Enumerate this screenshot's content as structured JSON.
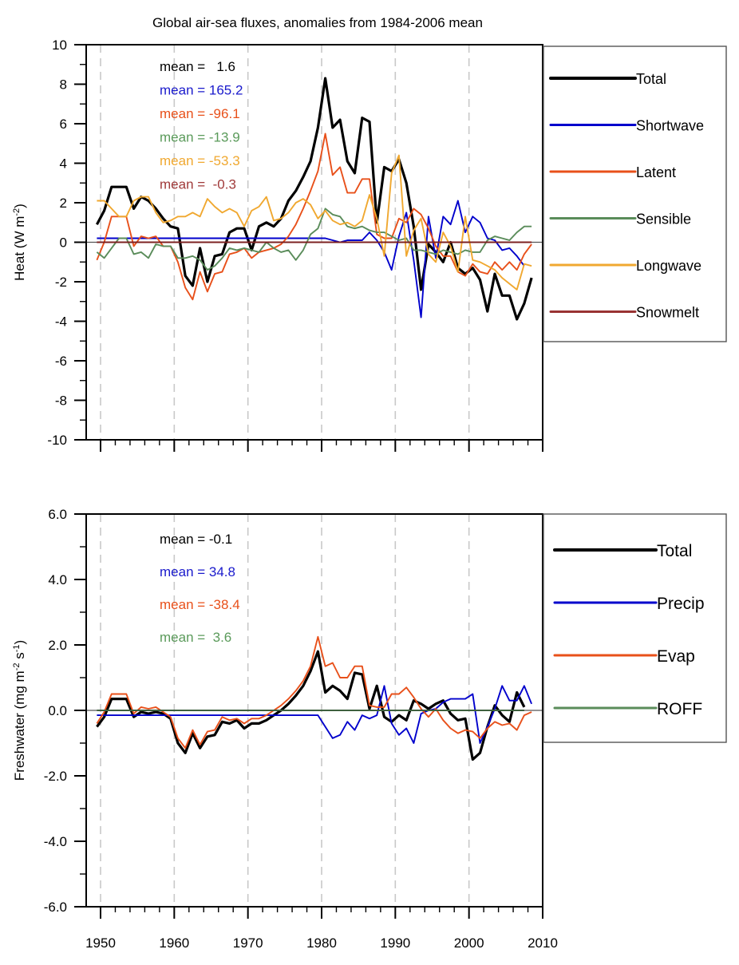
{
  "chart_data": [
    {
      "type": "line",
      "title": "Global air-sea fluxes, anomalies from 1984-2006 mean",
      "xlabel": "",
      "ylabel": "Heat (W m^-2)",
      "ylabel_main": "Heat (W m",
      "ylabel_sup": "-2",
      "ylabel_end": ")",
      "xlim": [
        1950,
        2010
      ],
      "ylim": [
        -10,
        10
      ],
      "xticks": [
        1950,
        1960,
        1970,
        1980,
        1990,
        2000,
        2010
      ],
      "xtick_labels_shown": false,
      "yticks": [
        10,
        8,
        6,
        4,
        2,
        0,
        -2,
        -4,
        -6,
        -8,
        -10
      ],
      "ytick_labels": [
        "10",
        "8",
        "6",
        "4",
        "2",
        "0",
        "-2",
        "-4",
        "-6",
        "-8",
        "-10"
      ],
      "grid": "vertical dashed at decades",
      "legend_position": "right",
      "x_start": 1949.5,
      "series": [
        {
          "name": "Total",
          "color": "#000000",
          "mean_label": "mean =   1.6",
          "values": [
            0.9,
            1.6,
            2.8,
            2.8,
            2.8,
            1.7,
            2.3,
            2.1,
            1.7,
            1.2,
            0.8,
            0.7,
            -1.7,
            -2.2,
            -0.3,
            -2.0,
            -0.7,
            -0.6,
            0.5,
            0.7,
            0.7,
            -0.4,
            0.8,
            1.0,
            0.8,
            1.2,
            2.1,
            2.6,
            3.3,
            4.1,
            5.8,
            8.3,
            5.8,
            6.2,
            4.1,
            3.5,
            6.3,
            6.1,
            1.0,
            3.8,
            3.6,
            4.2,
            3.0,
            0.8,
            -2.4,
            -0.1,
            -0.5,
            -1.0,
            0.0,
            -1.3,
            -1.6,
            -1.3,
            -1.9,
            -3.5,
            -1.6,
            -2.7,
            -2.7,
            -3.9,
            -3.1,
            -1.8
          ]
        },
        {
          "name": "Shortwave",
          "color": "#0000cc",
          "mean_label": "mean = 165.2",
          "values": [
            0.2,
            0.2,
            0.2,
            0.2,
            0.2,
            0.2,
            0.2,
            0.2,
            0.2,
            0.2,
            0.2,
            0.2,
            0.2,
            0.2,
            0.2,
            0.2,
            0.2,
            0.2,
            0.2,
            0.2,
            0.2,
            0.2,
            0.2,
            0.2,
            0.2,
            0.2,
            0.2,
            0.2,
            0.2,
            0.2,
            0.2,
            0.2,
            0.1,
            0.0,
            0.1,
            0.1,
            0.1,
            0.5,
            0.1,
            -0.5,
            -1.4,
            0.3,
            1.5,
            -0.9,
            -3.8,
            1.3,
            -0.8,
            1.3,
            0.9,
            2.1,
            0.5,
            1.3,
            1.0,
            0.2,
            0.1,
            -0.4,
            -0.3,
            -0.7,
            -1.2
          ]
        },
        {
          "name": "Latent",
          "color": "#e8501a",
          "mean_label": "mean = -96.1",
          "values": [
            -0.9,
            0.0,
            1.3,
            1.3,
            1.3,
            -0.2,
            0.3,
            0.2,
            0.3,
            -0.2,
            -0.2,
            -1.0,
            -2.3,
            -2.9,
            -1.5,
            -2.5,
            -1.6,
            -1.5,
            -0.6,
            -0.5,
            -0.3,
            -0.8,
            -0.5,
            -0.4,
            -0.3,
            -0.1,
            0.3,
            0.9,
            1.7,
            2.6,
            3.6,
            5.5,
            3.4,
            3.8,
            2.5,
            2.5,
            3.2,
            3.2,
            0.4,
            0.2,
            0.2,
            1.2,
            1.0,
            1.7,
            1.4,
            0.7,
            -0.2,
            -0.7,
            -0.7,
            -1.5,
            -1.7,
            -1.1,
            -1.5,
            -1.6,
            -1.0,
            -1.4,
            -1.0,
            -1.4,
            -0.6,
            -0.1
          ]
        },
        {
          "name": "Sensible",
          "color": "#5a8c5a",
          "mean_label": "mean = -13.9",
          "values": [
            -0.5,
            -0.8,
            -0.3,
            0.2,
            0.2,
            -0.6,
            -0.5,
            -0.8,
            -0.1,
            -0.2,
            -0.2,
            -0.8,
            -0.8,
            -0.7,
            -0.9,
            -1.4,
            -1.2,
            -0.8,
            -0.3,
            -0.4,
            -0.3,
            -0.4,
            -0.5,
            0.0,
            -0.3,
            -0.5,
            -0.4,
            -0.9,
            -0.4,
            0.4,
            0.7,
            1.7,
            1.4,
            1.3,
            0.8,
            0.7,
            0.8,
            0.6,
            0.5,
            0.5,
            0.3,
            0.1,
            0.2,
            -0.4,
            -0.4,
            -0.5,
            -0.6,
            -0.4,
            -0.5,
            -0.6,
            -0.4,
            -0.5,
            -0.5,
            0.1,
            0.3,
            0.2,
            0.1,
            0.5,
            0.8,
            0.8
          ]
        },
        {
          "name": "Longwave",
          "color": "#f0a830",
          "mean_label": "mean = -53.3",
          "values": [
            2.1,
            2.1,
            1.7,
            1.3,
            1.3,
            2.1,
            2.3,
            2.3,
            1.5,
            1.0,
            1.1,
            1.3,
            1.3,
            1.5,
            1.3,
            2.2,
            1.8,
            1.5,
            1.7,
            1.5,
            0.8,
            1.6,
            1.8,
            2.3,
            1.1,
            1.2,
            1.5,
            2.0,
            2.2,
            1.9,
            1.2,
            1.6,
            1.1,
            0.9,
            1.0,
            0.8,
            1.1,
            2.4,
            1.2,
            -0.7,
            3.5,
            4.4,
            -0.7,
            0.6,
            1.2,
            -0.6,
            -1.0,
            0.5,
            -0.2,
            -1.5,
            1.3,
            -0.9,
            -1.0,
            -1.2,
            -1.4,
            -1.8,
            -2.1,
            -2.4,
            -1.1,
            -1.2
          ]
        },
        {
          "name": "Snowmelt",
          "color": "#993333",
          "mean_label": "mean =  -0.3",
          "values": [
            0.0,
            0.0,
            0.0,
            0.0,
            0.0,
            0.0,
            0.0,
            0.0,
            0.0,
            0.0,
            0.0,
            0.0,
            0.0,
            0.0,
            0.0,
            0.0,
            0.0,
            0.0,
            0.0,
            0.0,
            0.0,
            0.0,
            0.0,
            0.0,
            0.0,
            0.0,
            0.0,
            0.0,
            0.0,
            0.0,
            0.0,
            0.0,
            0.0,
            0.0,
            0.0,
            0.0,
            0.0,
            0.0,
            0.0,
            0.0,
            0.0,
            0.0,
            0.0,
            0.0,
            0.0,
            0.0,
            0.0,
            0.0,
            0.0,
            0.0,
            0.0,
            0.0,
            0.0,
            0.0,
            0.0,
            0.0,
            0.0,
            0.0,
            0.0,
            0.0
          ]
        }
      ]
    },
    {
      "type": "line",
      "title": "",
      "xlabel": "",
      "ylabel": "Freshwater (mg m^-2 s^-1)",
      "ylabel_main": "Freshwater (mg m",
      "ylabel_sup1": "-2",
      "ylabel_mid": " s",
      "ylabel_sup2": "-1",
      "ylabel_end": ")",
      "xlim": [
        1950,
        2010
      ],
      "ylim": [
        -6.0,
        6.0
      ],
      "xticks": [
        1950,
        1960,
        1970,
        1980,
        1990,
        2000,
        2010
      ],
      "xtick_labels": [
        "1950",
        "1960",
        "1970",
        "1980",
        "1990",
        "2000",
        "2010"
      ],
      "yticks": [
        6.0,
        4.0,
        2.0,
        0.0,
        -2.0,
        -4.0,
        -6.0
      ],
      "ytick_labels": [
        "6.0",
        "4.0",
        "2.0",
        "0.0",
        "-2.0",
        "-4.0",
        "-6.0"
      ],
      "grid": "vertical dashed at decades",
      "legend_position": "right",
      "x_start": 1949.5,
      "series": [
        {
          "name": "Total",
          "color": "#000000",
          "mean_label": "mean = -0.1",
          "values": [
            -0.5,
            -0.2,
            0.35,
            0.35,
            0.35,
            -0.2,
            -0.05,
            -0.1,
            -0.05,
            -0.1,
            -0.25,
            -1.0,
            -1.3,
            -0.7,
            -1.15,
            -0.8,
            -0.75,
            -0.35,
            -0.4,
            -0.3,
            -0.55,
            -0.4,
            -0.4,
            -0.3,
            -0.15,
            0.0,
            0.2,
            0.45,
            0.75,
            1.2,
            1.8,
            0.55,
            0.75,
            0.6,
            0.35,
            1.15,
            1.1,
            0.05,
            0.75,
            -0.2,
            -0.35,
            -0.15,
            -0.3,
            0.3,
            0.2,
            0.05,
            0.2,
            0.3,
            -0.1,
            -0.3,
            -0.25,
            -1.5,
            -1.3,
            -0.5,
            0.15,
            -0.15,
            -0.35,
            0.55,
            0.1
          ]
        },
        {
          "name": "Precip",
          "color": "#0000cc",
          "mean_label": "mean = 34.8",
          "values": [
            -0.15,
            -0.15,
            -0.15,
            -0.15,
            -0.15,
            -0.15,
            -0.15,
            -0.15,
            -0.15,
            -0.15,
            -0.15,
            -0.15,
            -0.15,
            -0.15,
            -0.15,
            -0.15,
            -0.15,
            -0.15,
            -0.15,
            -0.15,
            -0.15,
            -0.15,
            -0.15,
            -0.15,
            -0.15,
            -0.15,
            -0.15,
            -0.15,
            -0.15,
            -0.15,
            -0.15,
            -0.5,
            -0.85,
            -0.75,
            -0.35,
            -0.6,
            -0.15,
            -0.25,
            -0.15,
            0.75,
            -0.4,
            -0.75,
            -0.55,
            -1.0,
            -0.1,
            0.0,
            0.05,
            0.25,
            0.35,
            0.35,
            0.35,
            0.5,
            -1.0,
            -0.5,
            0.05,
            0.75,
            0.3,
            0.3,
            0.75,
            0.2
          ]
        },
        {
          "name": "Evap",
          "color": "#e8501a",
          "mean_label": "mean = -38.4",
          "values": [
            -0.4,
            -0.05,
            0.5,
            0.5,
            0.5,
            -0.1,
            0.1,
            0.05,
            0.1,
            -0.05,
            -0.2,
            -0.85,
            -1.15,
            -0.6,
            -1.05,
            -0.65,
            -0.6,
            -0.2,
            -0.3,
            -0.25,
            -0.4,
            -0.25,
            -0.25,
            -0.15,
            0.0,
            0.15,
            0.35,
            0.6,
            0.9,
            1.35,
            2.25,
            1.35,
            1.45,
            1.0,
            1.0,
            1.35,
            1.35,
            0.15,
            0.1,
            0.1,
            0.5,
            0.5,
            0.7,
            0.4,
            0.05,
            -0.2,
            0.05,
            -0.3,
            -0.55,
            -0.7,
            -0.6,
            -0.65,
            -0.85,
            -0.55,
            -0.35,
            -0.45,
            -0.4,
            -0.6,
            -0.15,
            -0.05
          ]
        },
        {
          "name": "ROFF",
          "color": "#5a8c5a",
          "mean_label": "mean =  3.6",
          "values": [
            0.0,
            0.0,
            0.0,
            0.0,
            0.0,
            0.0,
            0.0,
            0.0,
            0.0,
            0.0,
            0.0,
            0.0,
            0.0,
            0.0,
            0.0,
            0.0,
            0.0,
            0.0,
            0.0,
            0.0,
            0.0,
            0.0,
            0.0,
            0.0,
            0.0,
            0.0,
            0.0,
            0.0,
            0.0,
            0.0,
            0.0,
            0.0,
            0.0,
            0.0,
            0.0,
            0.0,
            0.0,
            0.0,
            0.0,
            0.0,
            0.0,
            0.0,
            0.0,
            0.0,
            0.0,
            0.0,
            0.0,
            0.0,
            0.0,
            0.0,
            0.0,
            0.0,
            0.0,
            0.0,
            0.0,
            0.0,
            0.0,
            0.0,
            0.0
          ]
        }
      ]
    }
  ]
}
